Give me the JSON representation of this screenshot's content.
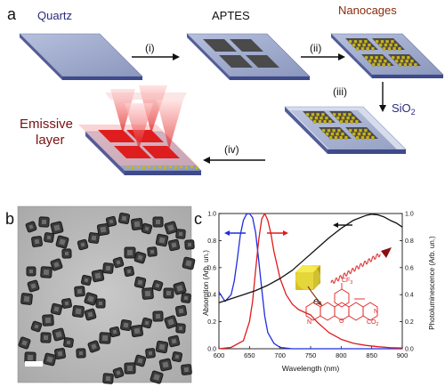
{
  "panels": {
    "a": {
      "letter": "a",
      "labels": {
        "quartz": "Quartz",
        "aptes": "APTES",
        "nanocages": "Nanocages",
        "sio2_main": "SiO",
        "sio2_sub": "2",
        "emissive_line1": "Emissive",
        "emissive_line2": "layer"
      },
      "steps": [
        "(i)",
        "(ii)",
        "(iii)",
        "(iv)"
      ]
    },
    "b": {
      "letter": "b"
    },
    "c": {
      "letter": "c",
      "molecule_labels": {
        "cf3": "CF",
        "cf3_sub": "3",
        "co2": "CO",
        "co2_sub": "2",
        "n_left": "N",
        "n_right": "N",
        "o": "O"
      },
      "electron_label": "e"
    }
  },
  "chart_data": {
    "type": "line",
    "xlabel": "Wavelength (nm)",
    "ylabel_left": "Absorption (Arb. un.)",
    "ylabel_right": "Photoluminescence (Arb. un.)",
    "xlim": [
      600,
      900
    ],
    "ylim": [
      0,
      1
    ],
    "x_ticks": [
      600,
      650,
      700,
      750,
      800,
      850,
      900
    ],
    "y_ticks": [
      "0.0",
      "0.2",
      "0.4",
      "0.6",
      "0.8",
      "1.0"
    ],
    "y_tick_values": [
      0,
      0.2,
      0.4,
      0.6,
      0.8,
      1.0
    ],
    "grid": false,
    "series": [
      {
        "color": "#1f2ee0",
        "axis": "left",
        "x": [
          600,
          610,
          620,
          625,
          630,
          635,
          640,
          645,
          650,
          655,
          660,
          665,
          670,
          675,
          680,
          690,
          700,
          720,
          750,
          800,
          850,
          900
        ],
        "y": [
          0.42,
          0.35,
          0.4,
          0.5,
          0.66,
          0.84,
          0.95,
          0.995,
          1.0,
          0.97,
          0.86,
          0.66,
          0.44,
          0.24,
          0.12,
          0.04,
          0.01,
          0,
          0,
          0,
          0,
          0
        ]
      },
      {
        "color": "#e01a1a",
        "axis": "right",
        "x": [
          600,
          620,
          640,
          650,
          655,
          660,
          665,
          670,
          675,
          680,
          685,
          690,
          700,
          710,
          720,
          730,
          740,
          750,
          760,
          770,
          780,
          800,
          820,
          840,
          860,
          880,
          900
        ],
        "y": [
          0,
          0.01,
          0.06,
          0.2,
          0.35,
          0.58,
          0.8,
          0.96,
          1.0,
          0.95,
          0.85,
          0.72,
          0.52,
          0.4,
          0.33,
          0.29,
          0.27,
          0.25,
          0.2,
          0.16,
          0.12,
          0.07,
          0.04,
          0.025,
          0.015,
          0.008,
          0.005
        ]
      },
      {
        "color": "#111111",
        "axis": "left",
        "x": [
          600,
          620,
          640,
          660,
          680,
          700,
          720,
          740,
          760,
          780,
          800,
          820,
          840,
          850,
          860,
          870,
          880,
          890,
          900
        ],
        "y": [
          0.34,
          0.37,
          0.4,
          0.43,
          0.47,
          0.52,
          0.58,
          0.66,
          0.74,
          0.82,
          0.89,
          0.95,
          0.985,
          0.995,
          0.99,
          0.975,
          0.95,
          0.93,
          0.9
        ]
      }
    ]
  },
  "colors": {
    "substrate_top": "#9ba7ca",
    "substrate_edge": "#3f4a8a",
    "aptes_square": "#4a4a4a",
    "nanocage": "#c9b31f",
    "emissive": "#e01010",
    "label_blue": "#2a2a7e",
    "label_brown": "#8a2a0a",
    "emissive_text": "#7a1010"
  }
}
